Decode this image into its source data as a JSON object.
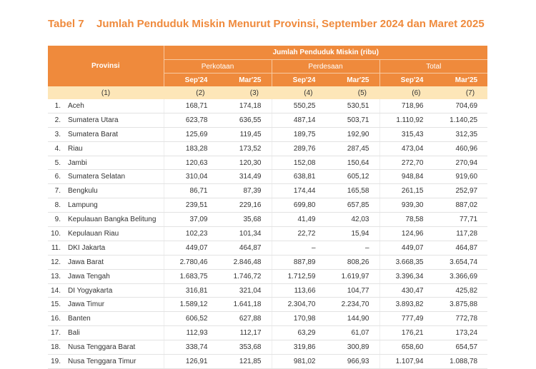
{
  "caption": {
    "number": "Tabel 7",
    "title": "Jumlah Penduduk Miskin Menurut Provinsi, September 2024 dan Maret 2025"
  },
  "header": {
    "provinsi": "Provinsi",
    "super": "Jumlah Penduduk Miskin (ribu)",
    "groups": [
      "Perkotaan",
      "Perdesaan",
      "Total"
    ],
    "periods": [
      "Sep'24",
      "Mar'25",
      "Sep'24",
      "Mar'25",
      "Sep'24",
      "Mar'25"
    ],
    "index": [
      "(1)",
      "(2)",
      "(3)",
      "(4)",
      "(5)",
      "(6)",
      "(7)"
    ]
  },
  "rows": [
    {
      "no": "1.",
      "name": "Aceh",
      "v": [
        "168,71",
        "174,18",
        "550,25",
        "530,51",
        "718,96",
        "704,69"
      ]
    },
    {
      "no": "2.",
      "name": "Sumatera Utara",
      "v": [
        "623,78",
        "636,55",
        "487,14",
        "503,71",
        "1.110,92",
        "1.140,25"
      ]
    },
    {
      "no": "3.",
      "name": "Sumatera Barat",
      "v": [
        "125,69",
        "119,45",
        "189,75",
        "192,90",
        "315,43",
        "312,35"
      ]
    },
    {
      "no": "4.",
      "name": "Riau",
      "v": [
        "183,28",
        "173,52",
        "289,76",
        "287,45",
        "473,04",
        "460,96"
      ]
    },
    {
      "no": "5.",
      "name": "Jambi",
      "v": [
        "120,63",
        "120,30",
        "152,08",
        "150,64",
        "272,70",
        "270,94"
      ]
    },
    {
      "no": "6.",
      "name": "Sumatera Selatan",
      "v": [
        "310,04",
        "314,49",
        "638,81",
        "605,12",
        "948,84",
        "919,60"
      ]
    },
    {
      "no": "7.",
      "name": "Bengkulu",
      "v": [
        "86,71",
        "87,39",
        "174,44",
        "165,58",
        "261,15",
        "252,97"
      ]
    },
    {
      "no": "8.",
      "name": "Lampung",
      "v": [
        "239,51",
        "229,16",
        "699,80",
        "657,85",
        "939,30",
        "887,02"
      ]
    },
    {
      "no": "9.",
      "name": "Kepulauan Bangka Belitung",
      "v": [
        "37,09",
        "35,68",
        "41,49",
        "42,03",
        "78,58",
        "77,71"
      ]
    },
    {
      "no": "10.",
      "name": "Kepulauan Riau",
      "v": [
        "102,23",
        "101,34",
        "22,72",
        "15,94",
        "124,96",
        "117,28"
      ]
    },
    {
      "no": "11.",
      "name": "DKI Jakarta",
      "v": [
        "449,07",
        "464,87",
        "–",
        "–",
        "449,07",
        "464,87"
      ]
    },
    {
      "no": "12.",
      "name": "Jawa Barat",
      "v": [
        "2.780,46",
        "2.846,48",
        "887,89",
        "808,26",
        "3.668,35",
        "3.654,74"
      ]
    },
    {
      "no": "13.",
      "name": "Jawa Tengah",
      "v": [
        "1.683,75",
        "1.746,72",
        "1.712,59",
        "1.619,97",
        "3.396,34",
        "3.366,69"
      ]
    },
    {
      "no": "14.",
      "name": "DI Yogyakarta",
      "v": [
        "316,81",
        "321,04",
        "113,66",
        "104,77",
        "430,47",
        "425,82"
      ]
    },
    {
      "no": "15.",
      "name": "Jawa Timur",
      "v": [
        "1.589,12",
        "1.641,18",
        "2.304,70",
        "2.234,70",
        "3.893,82",
        "3.875,88"
      ]
    },
    {
      "no": "16.",
      "name": "Banten",
      "v": [
        "606,52",
        "627,88",
        "170,98",
        "144,90",
        "777,49",
        "772,78"
      ]
    },
    {
      "no": "17.",
      "name": "Bali",
      "v": [
        "112,93",
        "112,17",
        "63,29",
        "61,07",
        "176,21",
        "173,24"
      ]
    },
    {
      "no": "18.",
      "name": "Nusa Tenggara Barat",
      "v": [
        "338,74",
        "353,68",
        "319,86",
        "300,89",
        "658,60",
        "654,57"
      ]
    },
    {
      "no": "19.",
      "name": "Nusa Tenggara Timur",
      "v": [
        "126,91",
        "121,85",
        "981,02",
        "966,93",
        "1.107,94",
        "1.088,78"
      ]
    }
  ],
  "colors": {
    "accent": "#ef8a3c",
    "index_row": "#fde6b8",
    "caption": "#ef8a3c"
  }
}
